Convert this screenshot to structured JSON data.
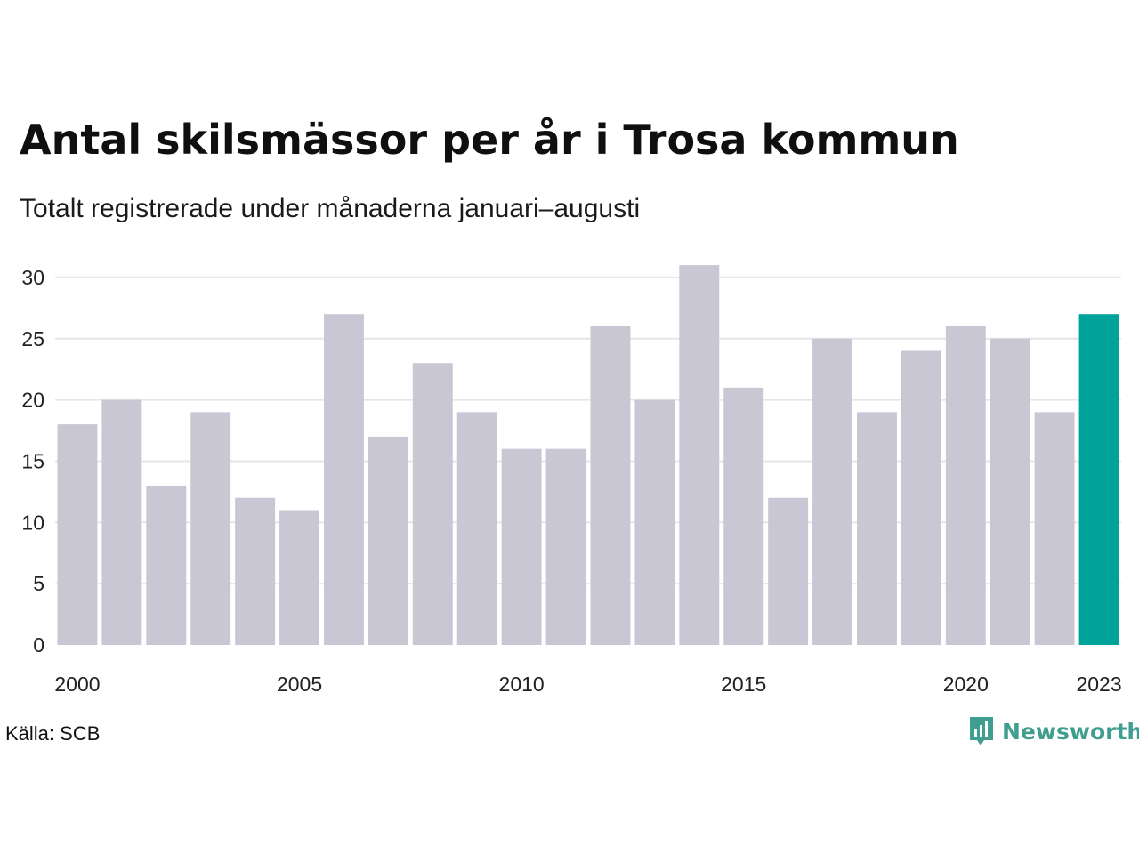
{
  "title": "Antal skilsmässor per år i Trosa kommun",
  "subtitle": "Totalt registrerade under månaderna januari–augusti",
  "source": "Källa: SCB",
  "brand": "Newsworthy",
  "colors": {
    "bar": "#c8c7d3",
    "highlight": "#00a39a",
    "grid": "#e6e6e6",
    "brand": "#3f9e8f"
  },
  "logo_icon": "bar-chart-speech-bubble-icon",
  "chart_data": {
    "type": "bar",
    "categories": [
      "2000",
      "2001",
      "2002",
      "2003",
      "2004",
      "2005",
      "2006",
      "2007",
      "2008",
      "2009",
      "2010",
      "2011",
      "2012",
      "2013",
      "2014",
      "2015",
      "2016",
      "2017",
      "2018",
      "2019",
      "2020",
      "2021",
      "2022",
      "2023"
    ],
    "values": [
      18,
      20,
      13,
      19,
      12,
      11,
      27,
      17,
      23,
      19,
      16,
      16,
      26,
      20,
      31,
      21,
      12,
      25,
      19,
      24,
      26,
      25,
      19,
      27
    ],
    "highlight": "2023",
    "x_tick_labels": [
      "2000",
      "2005",
      "2010",
      "2015",
      "2020",
      "2023"
    ],
    "y_ticks": [
      0,
      5,
      10,
      15,
      20,
      25,
      30
    ],
    "ylim": [
      0,
      31
    ],
    "grid": true,
    "legend": "none"
  }
}
